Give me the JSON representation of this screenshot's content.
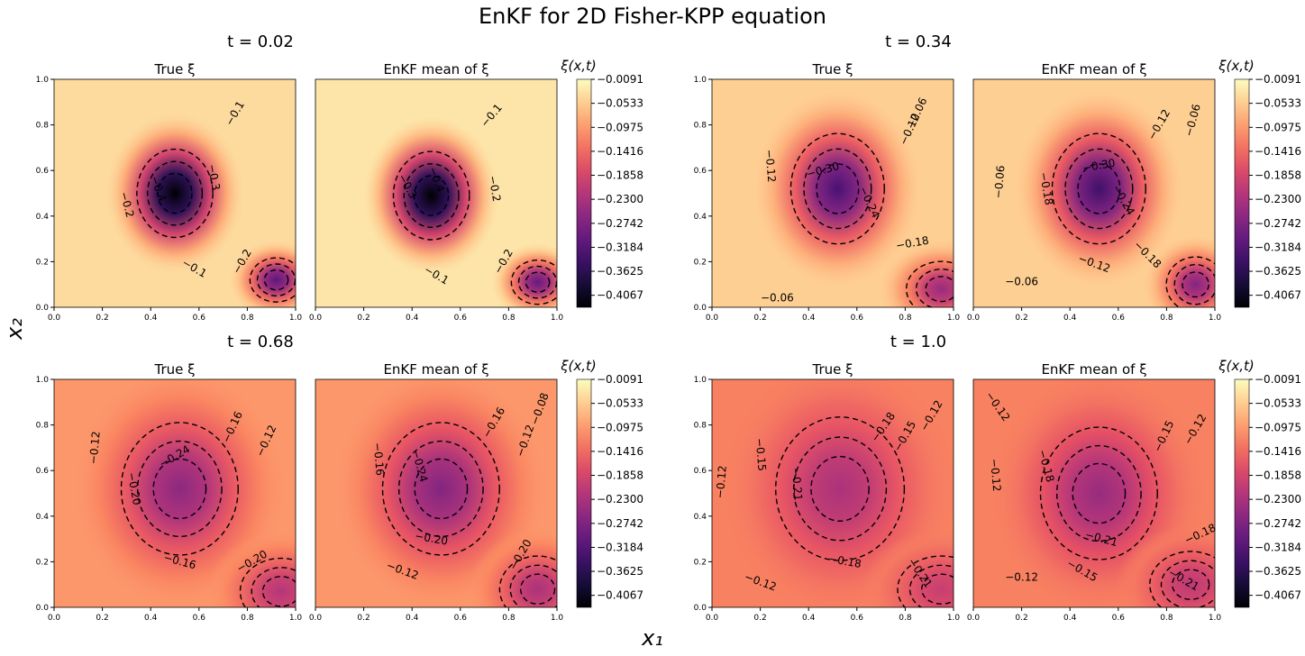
{
  "figure": {
    "title": "EnKF for 2D Fisher-KPP equation",
    "xlabel": "x₁",
    "ylabel": "x₂",
    "colormap": "magma"
  },
  "chart_data": {
    "type": "heatmap",
    "colorbar": {
      "label": "ξ(x,t)",
      "vmin": -0.4288,
      "vmax": -0.0091,
      "ticks": [
        -0.0091,
        -0.0533,
        -0.0975,
        -0.1416,
        -0.1858,
        -0.23,
        -0.2742,
        -0.3184,
        -0.3625,
        -0.4067
      ],
      "tick_labels": [
        "−0.0091",
        "−0.0533",
        "−0.0975",
        "−0.1416",
        "−0.1858",
        "−0.2300",
        "−0.2742",
        "−0.3184",
        "−0.3625",
        "−0.4067"
      ]
    },
    "axes": {
      "xlim": [
        0,
        1
      ],
      "ylim": [
        0,
        1
      ],
      "xticks": [
        "0.0",
        "0.2",
        "0.4",
        "0.6",
        "0.8",
        "1.0"
      ],
      "yticks": [
        "0.0",
        "0.2",
        "0.4",
        "0.6",
        "0.8",
        "1.0"
      ]
    },
    "groups": [
      {
        "time": "t = 0.02",
        "panels": [
          {
            "title": "True ξ",
            "blobs": [
              {
                "cx": 0.5,
                "cy": 0.5,
                "sx": 0.13,
                "sy": 0.16,
                "amp": -0.41
              },
              {
                "cx": 0.92,
                "cy": 0.12,
                "sx": 0.09,
                "sy": 0.08,
                "amp": -0.27
              }
            ],
            "background": -0.04,
            "contour_labels": [
              {
                "text": "−0.1",
                "x": 0.75,
                "y": 0.85,
                "rot": 60
              },
              {
                "text": "−0.2",
                "x": 0.3,
                "y": 0.45,
                "rot": -75
              },
              {
                "text": "−0.3",
                "x": 0.66,
                "y": 0.57,
                "rot": -80
              },
              {
                "text": "−0.4",
                "x": 0.43,
                "y": 0.52,
                "rot": -70
              },
              {
                "text": "−0.1",
                "x": 0.58,
                "y": 0.17,
                "rot": -30
              },
              {
                "text": "−0.2",
                "x": 0.78,
                "y": 0.2,
                "rot": 60
              }
            ]
          },
          {
            "title": "EnKF mean of ξ",
            "blobs": [
              {
                "cx": 0.48,
                "cy": 0.49,
                "sx": 0.13,
                "sy": 0.16,
                "amp": -0.42
              },
              {
                "cx": 0.92,
                "cy": 0.11,
                "sx": 0.09,
                "sy": 0.08,
                "amp": -0.27
              }
            ],
            "background": -0.03,
            "contour_labels": [
              {
                "text": "−0.1",
                "x": 0.73,
                "y": 0.84,
                "rot": 50
              },
              {
                "text": "−0.2",
                "x": 0.74,
                "y": 0.52,
                "rot": -80
              },
              {
                "text": "−0.3",
                "x": 0.38,
                "y": 0.53,
                "rot": -60
              },
              {
                "text": "−0.4",
                "x": 0.5,
                "y": 0.56,
                "rot": -70
              },
              {
                "text": "−0.1",
                "x": 0.5,
                "y": 0.14,
                "rot": -30
              },
              {
                "text": "−0.2",
                "x": 0.78,
                "y": 0.2,
                "rot": 60
              }
            ]
          }
        ]
      },
      {
        "time": "t = 0.34",
        "panels": [
          {
            "title": "True ξ",
            "blobs": [
              {
                "cx": 0.52,
                "cy": 0.52,
                "sx": 0.16,
                "sy": 0.2,
                "amp": -0.28
              },
              {
                "cx": 0.95,
                "cy": 0.08,
                "sx": 0.12,
                "sy": 0.1,
                "amp": -0.2
              }
            ],
            "background": -0.05,
            "contour_labels": [
              {
                "text": "−0.06",
                "x": 0.85,
                "y": 0.85,
                "rot": 65
              },
              {
                "text": "−0.12",
                "x": 0.82,
                "y": 0.78,
                "rot": 65
              },
              {
                "text": "−0.12",
                "x": 0.24,
                "y": 0.62,
                "rot": -85
              },
              {
                "text": "−0.30",
                "x": 0.46,
                "y": 0.6,
                "rot": 15
              },
              {
                "text": "−0.24",
                "x": 0.65,
                "y": 0.46,
                "rot": -65
              },
              {
                "text": "−0.18",
                "x": 0.83,
                "y": 0.28,
                "rot": 10
              },
              {
                "text": "−0.06",
                "x": 0.27,
                "y": 0.04,
                "rot": 0
              }
            ]
          },
          {
            "title": "EnKF mean of ξ",
            "blobs": [
              {
                "cx": 0.52,
                "cy": 0.52,
                "sx": 0.16,
                "sy": 0.2,
                "amp": -0.29
              },
              {
                "cx": 0.92,
                "cy": 0.1,
                "sx": 0.1,
                "sy": 0.1,
                "amp": -0.22
              }
            ],
            "background": -0.05,
            "contour_labels": [
              {
                "text": "−0.06",
                "x": 0.91,
                "y": 0.82,
                "rot": 75
              },
              {
                "text": "−0.12",
                "x": 0.77,
                "y": 0.8,
                "rot": 60
              },
              {
                "text": "−0.06",
                "x": 0.11,
                "y": 0.55,
                "rot": 85
              },
              {
                "text": "−0.18",
                "x": 0.3,
                "y": 0.52,
                "rot": -80
              },
              {
                "text": "−0.30",
                "x": 0.52,
                "y": 0.62,
                "rot": 10
              },
              {
                "text": "−0.24",
                "x": 0.62,
                "y": 0.47,
                "rot": -60
              },
              {
                "text": "−0.18",
                "x": 0.72,
                "y": 0.23,
                "rot": -45
              },
              {
                "text": "−0.12",
                "x": 0.5,
                "y": 0.19,
                "rot": -20
              },
              {
                "text": "−0.06",
                "x": 0.2,
                "y": 0.11,
                "rot": 0
              }
            ]
          }
        ]
      },
      {
        "time": "t = 0.68",
        "panels": [
          {
            "title": "True ξ",
            "blobs": [
              {
                "cx": 0.52,
                "cy": 0.52,
                "sx": 0.2,
                "sy": 0.24,
                "amp": -0.16
              },
              {
                "cx": 0.94,
                "cy": 0.07,
                "sx": 0.14,
                "sy": 0.12,
                "amp": -0.12
              }
            ],
            "background": -0.1,
            "contour_labels": [
              {
                "text": "−0.12",
                "x": 0.17,
                "y": 0.7,
                "rot": 85
              },
              {
                "text": "−0.20",
                "x": 0.33,
                "y": 0.52,
                "rot": -80
              },
              {
                "text": "−0.24",
                "x": 0.5,
                "y": 0.66,
                "rot": 30
              },
              {
                "text": "−0.16",
                "x": 0.74,
                "y": 0.79,
                "rot": 65
              },
              {
                "text": "−0.12",
                "x": 0.88,
                "y": 0.73,
                "rot": 65
              },
              {
                "text": "−0.16",
                "x": 0.52,
                "y": 0.2,
                "rot": -15
              },
              {
                "text": "−0.20",
                "x": 0.82,
                "y": 0.2,
                "rot": 30
              }
            ]
          },
          {
            "title": "EnKF mean of ξ",
            "blobs": [
              {
                "cx": 0.52,
                "cy": 0.52,
                "sx": 0.2,
                "sy": 0.24,
                "amp": -0.17
              },
              {
                "cx": 0.92,
                "cy": 0.08,
                "sx": 0.13,
                "sy": 0.12,
                "amp": -0.13
              }
            ],
            "background": -0.1,
            "contour_labels": [
              {
                "text": "−0.08",
                "x": 0.93,
                "y": 0.87,
                "rot": 70
              },
              {
                "text": "−0.16",
                "x": 0.26,
                "y": 0.65,
                "rot": -85
              },
              {
                "text": "−0.24",
                "x": 0.43,
                "y": 0.62,
                "rot": -75
              },
              {
                "text": "−0.16",
                "x": 0.74,
                "y": 0.81,
                "rot": 60
              },
              {
                "text": "−0.12",
                "x": 0.87,
                "y": 0.73,
                "rot": 70
              },
              {
                "text": "−0.20",
                "x": 0.48,
                "y": 0.3,
                "rot": -10
              },
              {
                "text": "−0.12",
                "x": 0.36,
                "y": 0.16,
                "rot": -20
              },
              {
                "text": "−0.20",
                "x": 0.85,
                "y": 0.23,
                "rot": 60
              }
            ]
          }
        ]
      },
      {
        "time": "t = 1.0",
        "panels": [
          {
            "title": "True ξ",
            "blobs": [
              {
                "cx": 0.53,
                "cy": 0.52,
                "sx": 0.22,
                "sy": 0.26,
                "amp": -0.11
              },
              {
                "cx": 0.95,
                "cy": 0.08,
                "sx": 0.15,
                "sy": 0.12,
                "amp": -0.08
              }
            ],
            "background": -0.12,
            "contour_labels": [
              {
                "text": "−0.12",
                "x": 0.04,
                "y": 0.55,
                "rot": 85
              },
              {
                "text": "−0.15",
                "x": 0.2,
                "y": 0.67,
                "rot": -85
              },
              {
                "text": "−0.21",
                "x": 0.35,
                "y": 0.54,
                "rot": -85
              },
              {
                "text": "−0.18",
                "x": 0.71,
                "y": 0.79,
                "rot": 55
              },
              {
                "text": "−0.15",
                "x": 0.8,
                "y": 0.75,
                "rot": 60
              },
              {
                "text": "−0.12",
                "x": 0.91,
                "y": 0.84,
                "rot": 60
              },
              {
                "text": "−0.18",
                "x": 0.55,
                "y": 0.2,
                "rot": -10
              },
              {
                "text": "−0.21",
                "x": 0.86,
                "y": 0.15,
                "rot": -55
              },
              {
                "text": "−0.12",
                "x": 0.2,
                "y": 0.11,
                "rot": -20
              }
            ]
          },
          {
            "title": "EnKF mean of ξ",
            "blobs": [
              {
                "cx": 0.52,
                "cy": 0.5,
                "sx": 0.2,
                "sy": 0.24,
                "amp": -0.13
              },
              {
                "cx": 0.9,
                "cy": 0.1,
                "sx": 0.14,
                "sy": 0.12,
                "amp": -0.09
              }
            ],
            "background": -0.12,
            "contour_labels": [
              {
                "text": "−0.12",
                "x": 0.1,
                "y": 0.88,
                "rot": -55
              },
              {
                "text": "−0.12",
                "x": 0.09,
                "y": 0.58,
                "rot": -85
              },
              {
                "text": "−0.18",
                "x": 0.3,
                "y": 0.62,
                "rot": -75
              },
              {
                "text": "−0.15",
                "x": 0.79,
                "y": 0.75,
                "rot": 65
              },
              {
                "text": "−0.12",
                "x": 0.92,
                "y": 0.78,
                "rot": 60
              },
              {
                "text": "−0.21",
                "x": 0.53,
                "y": 0.3,
                "rot": -15
              },
              {
                "text": "−0.18",
                "x": 0.94,
                "y": 0.32,
                "rot": 25
              },
              {
                "text": "−0.15",
                "x": 0.45,
                "y": 0.16,
                "rot": -30
              },
              {
                "text": "−0.12",
                "x": 0.2,
                "y": 0.13,
                "rot": 0
              },
              {
                "text": "−0.21",
                "x": 0.87,
                "y": 0.12,
                "rot": -30
              }
            ]
          }
        ]
      }
    ]
  }
}
